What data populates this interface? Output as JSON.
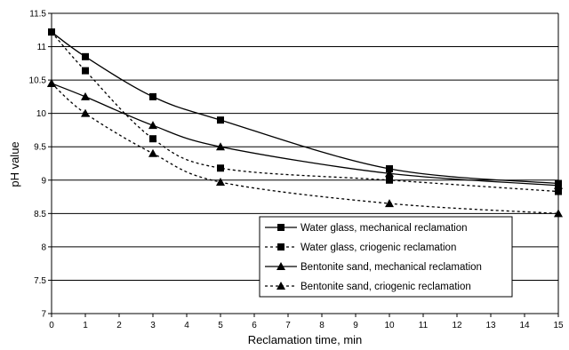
{
  "chart_data": {
    "type": "line",
    "title": "",
    "xlabel": "Reclamation time, min",
    "ylabel": "pH value",
    "xlim": [
      0,
      15
    ],
    "ylim": [
      7,
      11.5
    ],
    "x_ticks": [
      "0",
      "1",
      "2",
      "3",
      "4",
      "5",
      "6",
      "7",
      "8",
      "9",
      "10",
      "11",
      "12",
      "13",
      "14",
      "15"
    ],
    "y_ticks": [
      "7",
      "7.5",
      "8",
      "8.5",
      "9",
      "9.5",
      "10",
      "10.5",
      "11",
      "11.5"
    ],
    "grid": "horizontal",
    "legend_position": "bottom-right",
    "series": [
      {
        "name": "Water glass, mechanical reclamation",
        "marker": "square",
        "line": "solid",
        "x": [
          0,
          1,
          3,
          5,
          10,
          15
        ],
        "y": [
          11.22,
          10.85,
          10.25,
          9.9,
          9.17,
          8.95
        ]
      },
      {
        "name": "Water glass, criogenic reclamation",
        "marker": "square",
        "line": "dashed",
        "x": [
          0,
          1,
          3,
          5,
          10,
          15
        ],
        "y": [
          11.22,
          10.64,
          9.62,
          9.18,
          9.0,
          8.83
        ]
      },
      {
        "name": "Bentonite sand, mechanical reclamation",
        "marker": "triangle",
        "line": "solid",
        "x": [
          0,
          1,
          3,
          5,
          10,
          15
        ],
        "y": [
          10.45,
          10.25,
          9.82,
          9.5,
          9.1,
          8.92
        ]
      },
      {
        "name": "Bentonite sand, criogenic reclamation",
        "marker": "triangle",
        "line": "dashed",
        "x": [
          0,
          1,
          3,
          5,
          10,
          15
        ],
        "y": [
          10.45,
          10.0,
          9.4,
          8.97,
          8.65,
          8.5
        ]
      }
    ]
  }
}
